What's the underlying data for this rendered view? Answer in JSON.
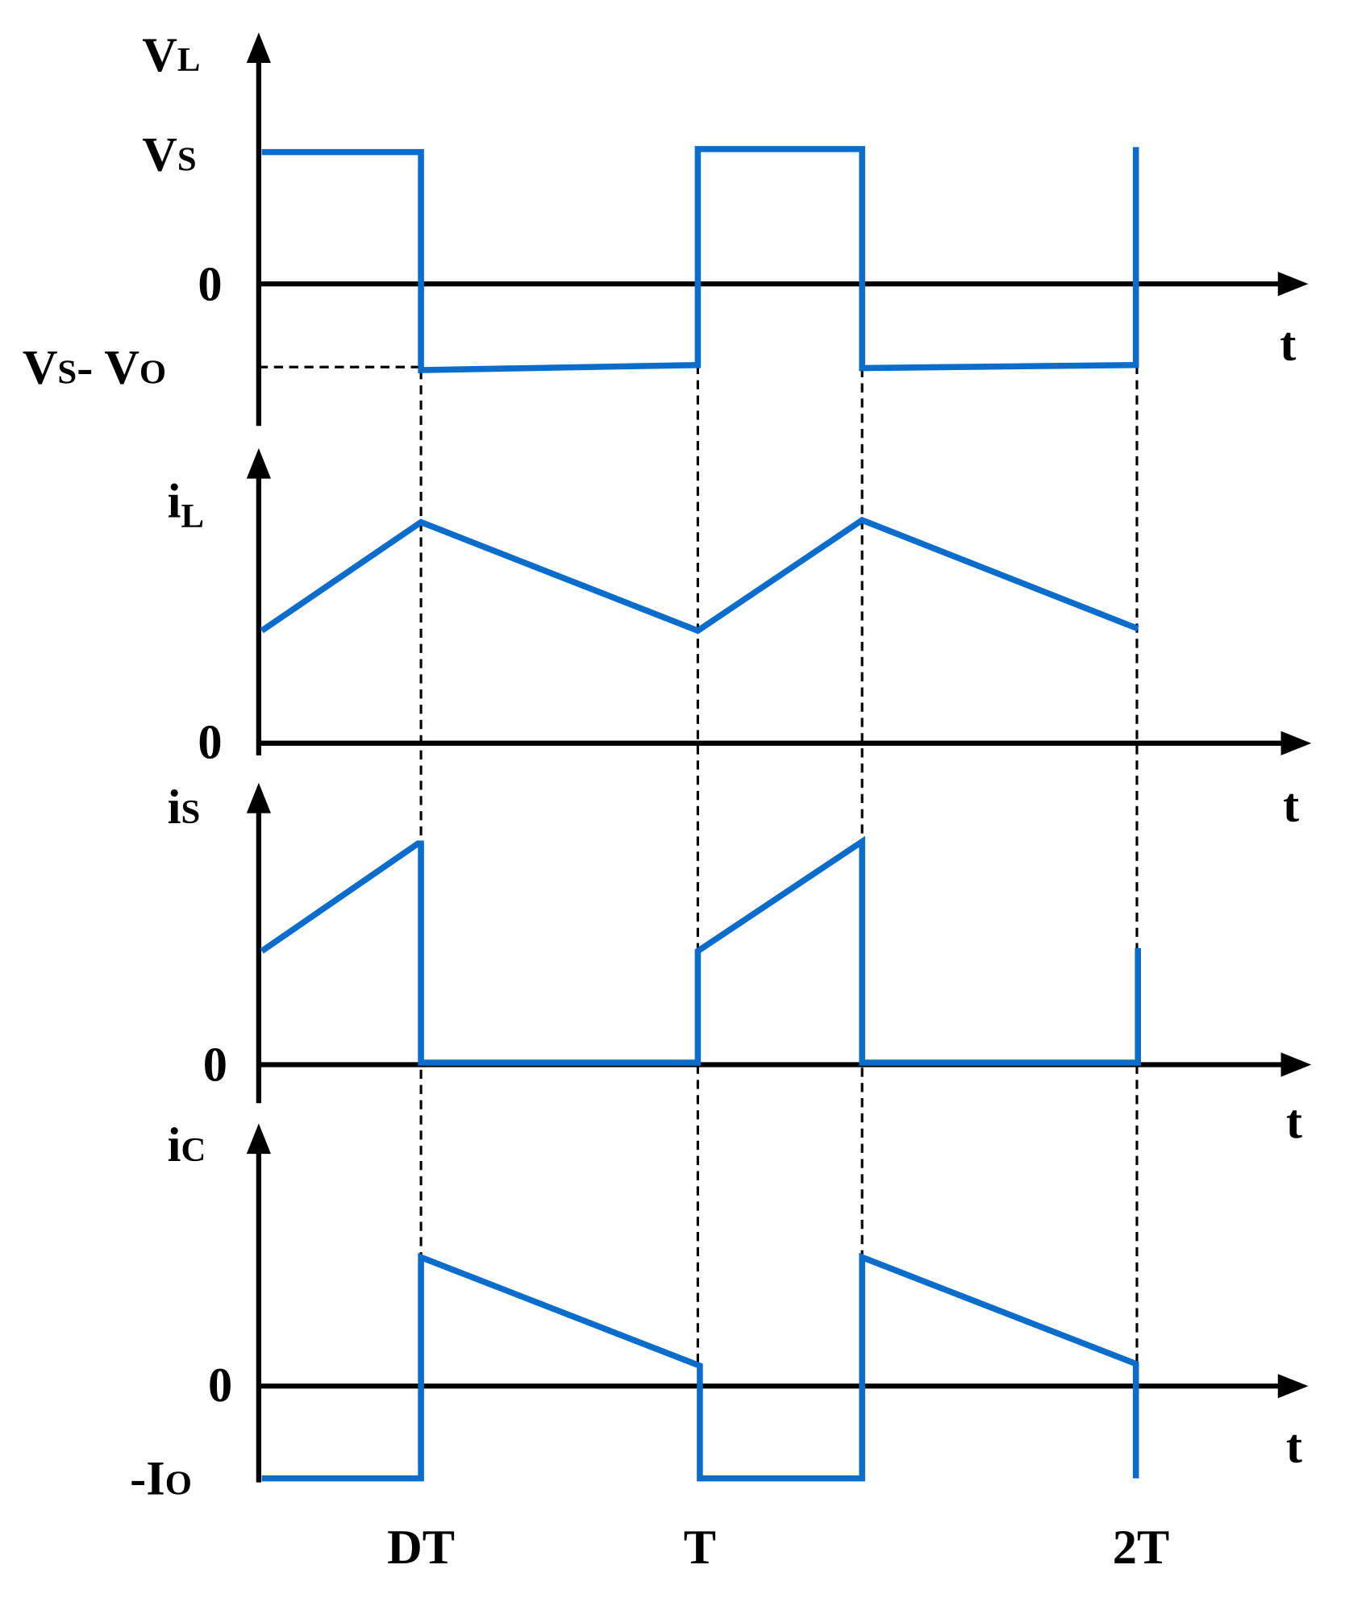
{
  "panels": [
    {
      "y_label": [
        "V",
        "L"
      ],
      "levels": [
        [
          "V",
          "S"
        ],
        [
          "0"
        ],
        [
          "V",
          "S",
          "- V",
          "O"
        ]
      ],
      "x_label": "t"
    },
    {
      "y_label": [
        "i",
        "L"
      ],
      "levels": [
        [
          "0"
        ]
      ],
      "x_label": "t"
    },
    {
      "y_label": [
        "i",
        "S"
      ],
      "levels": [
        [
          "0"
        ]
      ],
      "x_label": "t"
    },
    {
      "y_label": [
        "i",
        "C"
      ],
      "levels": [
        [
          "0"
        ],
        [
          "-I",
          "O"
        ]
      ],
      "x_label": "t"
    }
  ],
  "time_labels": [
    "DT",
    "T",
    "2T"
  ]
}
